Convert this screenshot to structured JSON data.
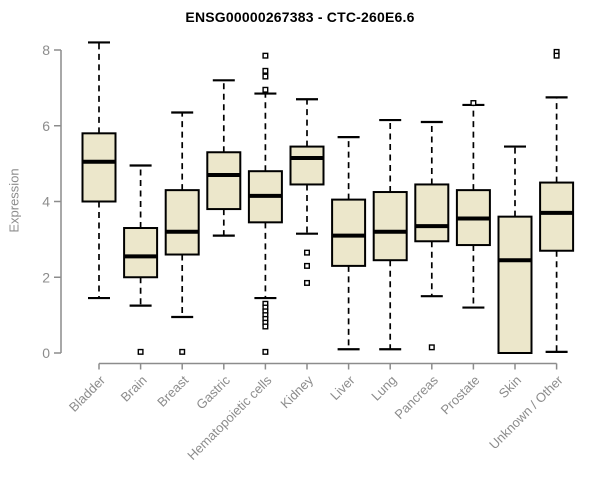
{
  "chart_data": {
    "type": "boxplot",
    "title": "ENSG00000267383 - CTC-260E6.6",
    "ylabel": "Expression",
    "xlabel": "",
    "ylim": [
      0,
      8
    ],
    "yticks": [
      0,
      2,
      4,
      6,
      8
    ],
    "grid": false,
    "legend": "none",
    "categories": [
      "Bladder",
      "Brain",
      "Breast",
      "Gastric",
      "Hematopoietic cells",
      "Kidney",
      "Liver",
      "Lung",
      "Pancreas",
      "Prostate",
      "Skin",
      "Unknown / Other"
    ],
    "boxes": [
      {
        "category": "Bladder",
        "whisker_low": 1.45,
        "q1": 4.0,
        "median": 5.05,
        "q3": 5.8,
        "whisker_high": 8.2,
        "outliers": []
      },
      {
        "category": "Brain",
        "whisker_low": 1.25,
        "q1": 2.0,
        "median": 2.55,
        "q3": 3.3,
        "whisker_high": 4.95,
        "outliers": [
          0.03
        ]
      },
      {
        "category": "Breast",
        "whisker_low": 0.95,
        "q1": 2.6,
        "median": 3.2,
        "q3": 4.3,
        "whisker_high": 6.35,
        "outliers": [
          0.03
        ]
      },
      {
        "category": "Gastric",
        "whisker_low": 3.1,
        "q1": 3.8,
        "median": 4.7,
        "q3": 5.3,
        "whisker_high": 7.2,
        "outliers": []
      },
      {
        "category": "Hematopoietic cells",
        "whisker_low": 1.45,
        "q1": 3.45,
        "median": 4.15,
        "q3": 4.8,
        "whisker_high": 6.85,
        "outliers": [
          7.85,
          7.45,
          7.3,
          6.95,
          1.3,
          1.2,
          1.1,
          1.0,
          0.9,
          0.8,
          0.7,
          0.03
        ]
      },
      {
        "category": "Kidney",
        "whisker_low": 3.15,
        "q1": 4.45,
        "median": 5.15,
        "q3": 5.45,
        "whisker_high": 6.7,
        "outliers": [
          2.65,
          2.3,
          1.85
        ]
      },
      {
        "category": "Liver",
        "whisker_low": 0.1,
        "q1": 2.3,
        "median": 3.1,
        "q3": 4.05,
        "whisker_high": 5.7,
        "outliers": []
      },
      {
        "category": "Lung",
        "whisker_low": 0.1,
        "q1": 2.45,
        "median": 3.2,
        "q3": 4.25,
        "whisker_high": 6.15,
        "outliers": []
      },
      {
        "category": "Pancreas",
        "whisker_low": 1.5,
        "q1": 2.95,
        "median": 3.35,
        "q3": 4.45,
        "whisker_high": 6.1,
        "outliers": [
          0.15
        ]
      },
      {
        "category": "Prostate",
        "whisker_low": 1.2,
        "q1": 2.85,
        "median": 3.55,
        "q3": 4.3,
        "whisker_high": 6.55,
        "outliers": [
          6.6
        ]
      },
      {
        "category": "Skin",
        "whisker_low": 0.0,
        "q1": 0.0,
        "median": 2.45,
        "q3": 3.6,
        "whisker_high": 5.45,
        "outliers": []
      },
      {
        "category": "Unknown / Other",
        "whisker_low": 0.03,
        "q1": 2.7,
        "median": 3.7,
        "q3": 4.5,
        "whisker_high": 6.75,
        "outliers": [
          7.95,
          7.85
        ]
      }
    ],
    "colors": {
      "box_fill": "#ECE7CB",
      "box_border": "#000000",
      "median": "#000000",
      "whisker": "#000000",
      "outlier_stroke": "#000000",
      "axis": "#8c8c8c",
      "tick_label": "#8c8c8c",
      "title": "#000000",
      "background": "#ffffff"
    }
  }
}
